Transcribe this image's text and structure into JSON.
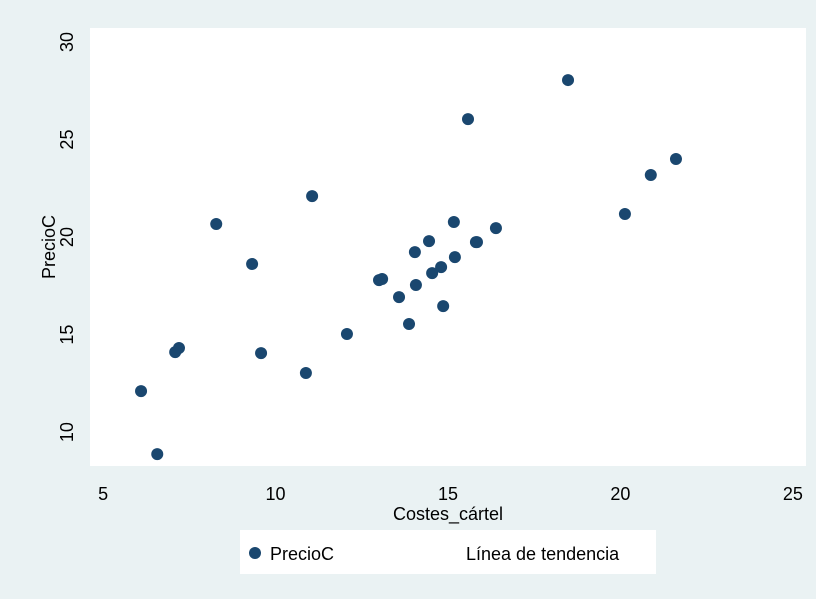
{
  "chart_data": {
    "type": "scatter",
    "x_label": "Costes_cártel",
    "y_label": "PrecioC",
    "xlim": [
      4.62,
      25.38
    ],
    "ylim": [
      8.26,
      30.72
    ],
    "xticks": [
      5,
      10,
      15,
      20,
      25
    ],
    "yticks": [
      10,
      15,
      20,
      25,
      30
    ],
    "grid": false,
    "legend": "bottom",
    "series": [
      {
        "name": "PrecioC",
        "color": "#1a476f",
        "x": [
          6.1,
          6.57,
          7.09,
          7.2,
          8.28,
          9.32,
          9.58,
          10.88,
          11.06,
          12.07,
          13.0,
          13.09,
          13.58,
          13.87,
          14.04,
          14.07,
          14.45,
          14.54,
          14.8,
          14.86,
          15.2,
          15.17,
          15.58,
          15.81,
          15.84,
          16.39,
          18.48,
          20.13,
          20.88,
          21.61
        ],
        "values": [
          12.1,
          8.87,
          14.1,
          14.31,
          20.67,
          18.62,
          14.05,
          13.03,
          22.1,
          15.03,
          17.79,
          17.85,
          16.92,
          15.54,
          19.23,
          17.54,
          19.79,
          18.15,
          18.46,
          16.46,
          18.97,
          20.77,
          26.05,
          19.74,
          19.74,
          20.46,
          28.05,
          21.18,
          23.18,
          24.0
        ]
      },
      {
        "name": "Línea de tendencia",
        "x": [],
        "values": []
      }
    ]
  }
}
